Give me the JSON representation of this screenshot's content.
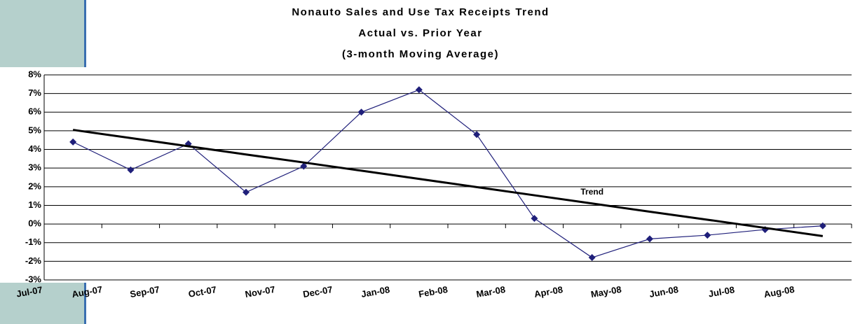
{
  "chart_data": {
    "type": "line",
    "title": "Nonauto Sales and Use Tax Receipts Trend",
    "subtitle": "Actual vs. Prior Year",
    "subtitle2": "(3-month Moving Average)",
    "categories": [
      "Jul-07",
      "Aug-07",
      "Sep-07",
      "Oct-07",
      "Nov-07",
      "Dec-07",
      "Jan-08",
      "Feb-08",
      "Mar-08",
      "Apr-08",
      "May-08",
      "Jun-08",
      "Jul-08",
      "Aug-08"
    ],
    "series": [
      {
        "color": "#1f1f7a",
        "values": [
          4.4,
          2.9,
          4.3,
          1.7,
          3.1,
          6.0,
          7.2,
          4.8,
          0.3,
          -1.8,
          -0.8,
          -0.6,
          -0.3,
          -0.1
        ]
      },
      {
        "name": "Trend",
        "color": "#000000",
        "values": [
          5.05,
          4.61,
          4.17,
          3.73,
          3.3,
          2.86,
          2.42,
          1.98,
          1.54,
          1.1,
          0.66,
          0.23,
          -0.21,
          -0.65
        ]
      }
    ],
    "ylim": [
      -3,
      8
    ],
    "yticks": [
      {
        "value": -3,
        "label": "-3%"
      },
      {
        "value": -2,
        "label": "-2%"
      },
      {
        "value": -1,
        "label": "-1%"
      },
      {
        "value": 0,
        "label": "0%"
      },
      {
        "value": 1,
        "label": "1%"
      },
      {
        "value": 2,
        "label": "2%"
      },
      {
        "value": 3,
        "label": "3%"
      },
      {
        "value": 4,
        "label": "4%"
      },
      {
        "value": 5,
        "label": "5%"
      },
      {
        "value": 6,
        "label": "6%"
      },
      {
        "value": 7,
        "label": "7%"
      },
      {
        "value": 8,
        "label": "8%"
      }
    ],
    "grid": true
  }
}
